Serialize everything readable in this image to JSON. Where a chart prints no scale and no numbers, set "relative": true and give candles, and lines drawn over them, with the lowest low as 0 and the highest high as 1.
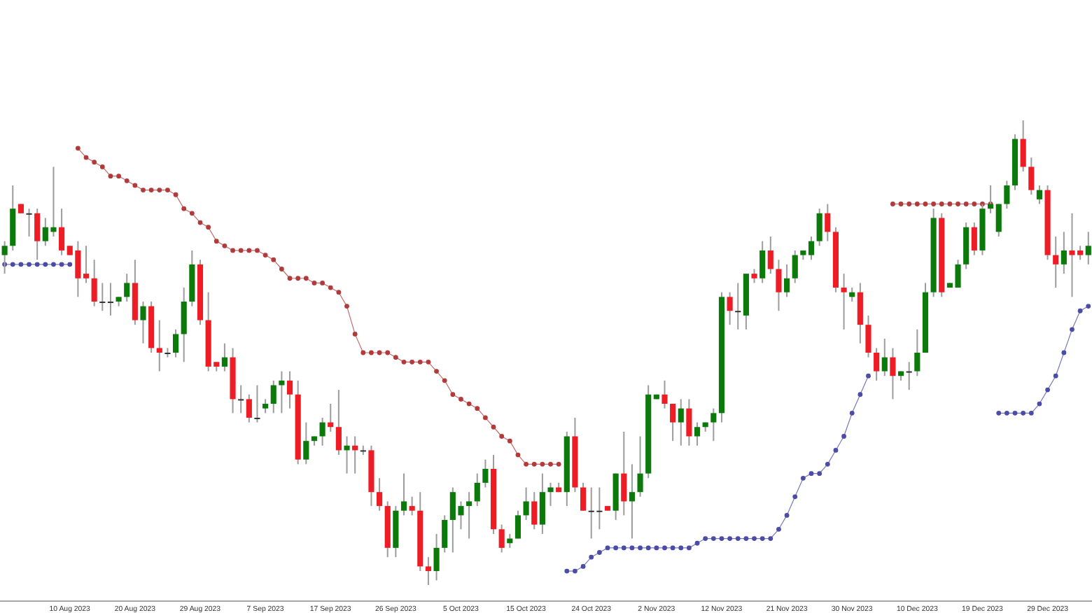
{
  "chart_data": {
    "type": "candlestick",
    "relative": true,
    "marker": "circle",
    "categories": [
      null,
      null,
      null,
      null,
      null,
      null,
      null,
      null,
      "10 Aug 2023",
      null,
      null,
      null,
      null,
      null,
      null,
      null,
      "20 Aug 2023",
      null,
      null,
      null,
      null,
      null,
      null,
      null,
      "29 Aug 2023",
      null,
      null,
      null,
      null,
      null,
      null,
      null,
      "7 Sep 2023",
      null,
      null,
      null,
      null,
      null,
      null,
      null,
      "17 Sep 2023",
      null,
      null,
      null,
      null,
      null,
      null,
      null,
      "26 Sep 2023",
      null,
      null,
      null,
      null,
      null,
      null,
      null,
      "5 Oct 2023",
      null,
      null,
      null,
      null,
      null,
      null,
      null,
      "15 Oct 2023",
      null,
      null,
      null,
      null,
      null,
      null,
      null,
      "24 Oct 2023",
      null,
      null,
      null,
      null,
      null,
      null,
      null,
      "2 Nov 2023",
      null,
      null,
      null,
      null,
      null,
      null,
      null,
      "12 Nov 2023",
      null,
      null,
      null,
      null,
      null,
      null,
      null,
      "21 Nov 2023",
      null,
      null,
      null,
      null,
      null,
      null,
      null,
      "30 Nov 2023",
      null,
      null,
      null,
      null,
      null,
      null,
      null,
      "10 Dec 2023",
      null,
      null,
      null,
      null,
      null,
      null,
      null,
      "19 Dec 2023",
      null,
      null,
      null,
      null,
      null,
      null,
      null,
      "29 Dec 2023",
      null,
      null,
      null,
      null,
      null
    ],
    "ohlc": [
      [
        0.71,
        0.74,
        0.67,
        0.73
      ],
      [
        0.73,
        0.86,
        0.72,
        0.81
      ],
      [
        0.82,
        0.82,
        0.8,
        0.8
      ],
      [
        0.8,
        0.81,
        0.75,
        0.8
      ],
      [
        0.8,
        0.81,
        0.7,
        0.74
      ],
      [
        0.74,
        0.79,
        0.73,
        0.77
      ],
      [
        0.76,
        0.9,
        0.75,
        0.77
      ],
      [
        0.77,
        0.81,
        0.71,
        0.72
      ],
      [
        0.73,
        0.73,
        0.71,
        0.71
      ],
      [
        0.72,
        0.74,
        0.62,
        0.66
      ],
      [
        0.67,
        0.73,
        0.65,
        0.66
      ],
      [
        0.66,
        0.7,
        0.6,
        0.61
      ],
      [
        0.61,
        0.65,
        0.59,
        0.61
      ],
      [
        0.61,
        0.65,
        0.58,
        0.61
      ],
      [
        0.61,
        0.62,
        0.6,
        0.62
      ],
      [
        0.62,
        0.67,
        0.61,
        0.65
      ],
      [
        0.65,
        0.7,
        0.56,
        0.57
      ],
      [
        0.57,
        0.61,
        0.52,
        0.6
      ],
      [
        0.6,
        0.61,
        0.5,
        0.51
      ],
      [
        0.51,
        0.57,
        0.46,
        0.5
      ],
      [
        0.5,
        0.51,
        0.49,
        0.5
      ],
      [
        0.5,
        0.55,
        0.49,
        0.54
      ],
      [
        0.54,
        0.64,
        0.48,
        0.61
      ],
      [
        0.61,
        0.72,
        0.6,
        0.69
      ],
      [
        0.69,
        0.7,
        0.56,
        0.57
      ],
      [
        0.57,
        0.63,
        0.46,
        0.47
      ],
      [
        0.48,
        0.48,
        0.46,
        0.47
      ],
      [
        0.47,
        0.52,
        0.46,
        0.49
      ],
      [
        0.49,
        0.51,
        0.37,
        0.4
      ],
      [
        0.4,
        0.43,
        0.37,
        0.4
      ],
      [
        0.4,
        0.41,
        0.35,
        0.36
      ],
      [
        0.36,
        0.43,
        0.35,
        0.36
      ],
      [
        0.38,
        0.4,
        0.37,
        0.39
      ],
      [
        0.39,
        0.44,
        0.37,
        0.43
      ],
      [
        0.43,
        0.46,
        0.37,
        0.44
      ],
      [
        0.44,
        0.46,
        0.38,
        0.41
      ],
      [
        0.41,
        0.44,
        0.26,
        0.27
      ],
      [
        0.27,
        0.35,
        0.26,
        0.31
      ],
      [
        0.31,
        0.32,
        0.3,
        0.32
      ],
      [
        0.32,
        0.36,
        0.3,
        0.35
      ],
      [
        0.35,
        0.39,
        0.33,
        0.34
      ],
      [
        0.34,
        0.42,
        0.28,
        0.29
      ],
      [
        0.29,
        0.32,
        0.24,
        0.3
      ],
      [
        0.3,
        0.32,
        0.24,
        0.29
      ],
      [
        0.29,
        0.3,
        0.28,
        0.29
      ],
      [
        0.29,
        0.3,
        0.17,
        0.2
      ],
      [
        0.2,
        0.23,
        0.16,
        0.17
      ],
      [
        0.17,
        0.18,
        0.06,
        0.08
      ],
      [
        0.08,
        0.17,
        0.06,
        0.16
      ],
      [
        0.16,
        0.24,
        0.15,
        0.18
      ],
      [
        0.17,
        0.19,
        0.15,
        0.16
      ],
      [
        0.16,
        0.2,
        0.03,
        0.04
      ],
      [
        0.04,
        0.06,
        0,
        0.03
      ],
      [
        0.03,
        0.11,
        0.01,
        0.08
      ],
      [
        0.08,
        0.15,
        0.07,
        0.14
      ],
      [
        0.14,
        0.21,
        0.07,
        0.2
      ],
      [
        0.15,
        0.18,
        0.12,
        0.17
      ],
      [
        0.17,
        0.2,
        0.1,
        0.18
      ],
      [
        0.18,
        0.24,
        0.17,
        0.22
      ],
      [
        0.22,
        0.27,
        0.21,
        0.25
      ],
      [
        0.25,
        0.28,
        0.11,
        0.12
      ],
      [
        0.12,
        0.13,
        0.07,
        0.08
      ],
      [
        0.09,
        0.11,
        0.08,
        0.1
      ],
      [
        0.1,
        0.16,
        0.1,
        0.15
      ],
      [
        0.15,
        0.21,
        0.14,
        0.18
      ],
      [
        0.18,
        0.2,
        0.12,
        0.13
      ],
      [
        0.13,
        0.24,
        0.11,
        0.2
      ],
      [
        0.2,
        0.22,
        0.17,
        0.21
      ],
      [
        0.21,
        0.22,
        0.2,
        0.2
      ],
      [
        0.2,
        0.33,
        0.17,
        0.32
      ],
      [
        0.32,
        0.36,
        0.2,
        0.21
      ],
      [
        0.21,
        0.22,
        0.16,
        0.16
      ],
      [
        0.16,
        0.21,
        0.1,
        0.16
      ],
      [
        0.16,
        0.21,
        0.12,
        0.16
      ],
      [
        0.17,
        0.17,
        0.16,
        0.16
      ],
      [
        0.16,
        0.24,
        0.14,
        0.24
      ],
      [
        0.24,
        0.33,
        0.15,
        0.18
      ],
      [
        0.18,
        0.26,
        0.1,
        0.2
      ],
      [
        0.2,
        0.32,
        0.19,
        0.24
      ],
      [
        0.24,
        0.43,
        0.23,
        0.41
      ],
      [
        0.4,
        0.41,
        0.4,
        0.41
      ],
      [
        0.41,
        0.44,
        0.38,
        0.39
      ],
      [
        0.39,
        0.39,
        0.31,
        0.35
      ],
      [
        0.35,
        0.4,
        0.3,
        0.38
      ],
      [
        0.38,
        0.4,
        0.3,
        0.32
      ],
      [
        0.32,
        0.35,
        0.3,
        0.34
      ],
      [
        0.34,
        0.35,
        0.33,
        0.35
      ],
      [
        0.35,
        0.38,
        0.31,
        0.37
      ],
      [
        0.37,
        0.63,
        0.35,
        0.62
      ],
      [
        0.62,
        0.63,
        0.56,
        0.59
      ],
      [
        0.59,
        0.65,
        0.55,
        0.59
      ],
      [
        0.58,
        0.67,
        0.55,
        0.67
      ],
      [
        0.67,
        0.68,
        0.65,
        0.66
      ],
      [
        0.66,
        0.74,
        0.65,
        0.72
      ],
      [
        0.72,
        0.75,
        0.67,
        0.68
      ],
      [
        0.68,
        0.7,
        0.59,
        0.63
      ],
      [
        0.63,
        0.69,
        0.62,
        0.66
      ],
      [
        0.66,
        0.72,
        0.65,
        0.71
      ],
      [
        0.71,
        0.72,
        0.7,
        0.72
      ],
      [
        0.71,
        0.75,
        0.7,
        0.74
      ],
      [
        0.74,
        0.81,
        0.73,
        0.8
      ],
      [
        0.8,
        0.82,
        0.74,
        0.76
      ],
      [
        0.76,
        0.77,
        0.63,
        0.64
      ],
      [
        0.64,
        0.67,
        0.55,
        0.63
      ],
      [
        0.62,
        0.64,
        0.61,
        0.63
      ],
      [
        0.63,
        0.65,
        0.52,
        0.56
      ],
      [
        0.56,
        0.58,
        0.49,
        0.5
      ],
      [
        0.5,
        0.51,
        0.44,
        0.46
      ],
      [
        0.46,
        0.53,
        0.45,
        0.49
      ],
      [
        0.49,
        0.51,
        0.4,
        0.45
      ],
      [
        0.45,
        0.46,
        0.44,
        0.46
      ],
      [
        0.46,
        0.48,
        0.42,
        0.46
      ],
      [
        0.46,
        0.55,
        0.45,
        0.5
      ],
      [
        0.5,
        0.65,
        0.5,
        0.63
      ],
      [
        0.63,
        0.81,
        0.62,
        0.79
      ],
      [
        0.79,
        0.8,
        0.62,
        0.63
      ],
      [
        0.64,
        0.65,
        0.64,
        0.65
      ],
      [
        0.64,
        0.7,
        0.64,
        0.69
      ],
      [
        0.69,
        0.78,
        0.68,
        0.77
      ],
      [
        0.77,
        0.78,
        0.71,
        0.72
      ],
      [
        0.72,
        0.82,
        0.71,
        0.81
      ],
      [
        0.81,
        0.86,
        0.8,
        0.82
      ],
      [
        0.76,
        0.82,
        0.75,
        0.82
      ],
      [
        0.82,
        0.87,
        0.81,
        0.86
      ],
      [
        0.86,
        0.97,
        0.85,
        0.96
      ],
      [
        0.96,
        1,
        0.89,
        0.9
      ],
      [
        0.9,
        0.92,
        0.84,
        0.85
      ],
      [
        0.83,
        0.86,
        0.82,
        0.85
      ],
      [
        0.85,
        0.86,
        0.7,
        0.71
      ],
      [
        0.71,
        0.75,
        0.64,
        0.69
      ],
      [
        0.69,
        0.76,
        0.67,
        0.72
      ],
      [
        0.72,
        0.8,
        0.62,
        0.71
      ],
      [
        0.72,
        0.73,
        0.7,
        0.71
      ],
      [
        0.71,
        0.76,
        0.69,
        0.73
      ]
    ],
    "colors": [
      "#0b7a0b",
      "#0b7a0b",
      "#ee1c25",
      "#333333",
      "#ee1c25",
      "#0b7a0b",
      "#0b7a0b",
      "#ee1c25",
      "#ee1c25",
      "#ee1c25",
      "#ee1c25",
      "#ee1c25",
      "#333333",
      "#333333",
      "#0b7a0b",
      "#0b7a0b",
      "#ee1c25",
      "#0b7a0b",
      "#ee1c25",
      "#ee1c25",
      "#333333",
      "#0b7a0b",
      "#0b7a0b",
      "#0b7a0b",
      "#ee1c25",
      "#ee1c25",
      "#ee1c25",
      "#0b7a0b",
      "#ee1c25",
      "#333333",
      "#ee1c25",
      "#333333",
      "#0b7a0b",
      "#0b7a0b",
      "#0b7a0b",
      "#ee1c25",
      "#ee1c25",
      "#0b7a0b",
      "#0b7a0b",
      "#0b7a0b",
      "#ee1c25",
      "#ee1c25",
      "#0b7a0b",
      "#ee1c25",
      "#333333",
      "#ee1c25",
      "#ee1c25",
      "#ee1c25",
      "#0b7a0b",
      "#0b7a0b",
      "#ee1c25",
      "#ee1c25",
      "#ee1c25",
      "#0b7a0b",
      "#0b7a0b",
      "#0b7a0b",
      "#0b7a0b",
      "#0b7a0b",
      "#0b7a0b",
      "#0b7a0b",
      "#ee1c25",
      "#ee1c25",
      "#0b7a0b",
      "#0b7a0b",
      "#0b7a0b",
      "#ee1c25",
      "#0b7a0b",
      "#0b7a0b",
      "#ee1c25",
      "#0b7a0b",
      "#ee1c25",
      "#ee1c25",
      "#333333",
      "#333333",
      "#ee1c25",
      "#0b7a0b",
      "#ee1c25",
      "#0b7a0b",
      "#0b7a0b",
      "#0b7a0b",
      "#0b7a0b",
      "#ee1c25",
      "#ee1c25",
      "#0b7a0b",
      "#ee1c25",
      "#0b7a0b",
      "#0b7a0b",
      "#0b7a0b",
      "#0b7a0b",
      "#ee1c25",
      "#333333",
      "#0b7a0b",
      "#ee1c25",
      "#0b7a0b",
      "#ee1c25",
      "#ee1c25",
      "#0b7a0b",
      "#0b7a0b",
      "#0b7a0b",
      "#0b7a0b",
      "#0b7a0b",
      "#ee1c25",
      "#ee1c25",
      "#ee1c25",
      "#0b7a0b",
      "#ee1c25",
      "#ee1c25",
      "#ee1c25",
      "#0b7a0b",
      "#ee1c25",
      "#0b7a0b",
      "#333333",
      "#0b7a0b",
      "#0b7a0b",
      "#0b7a0b",
      "#ee1c25",
      "#0b7a0b",
      "#0b7a0b",
      "#0b7a0b",
      "#ee1c25",
      "#0b7a0b",
      "#0b7a0b",
      "#0b7a0b",
      "#0b7a0b",
      "#0b7a0b",
      "#ee1c25",
      "#ee1c25",
      "#0b7a0b",
      "#ee1c25",
      "#ee1c25",
      "#0b7a0b",
      "#ee1c25",
      "#ee1c25",
      "#0b7a0b"
    ],
    "series": [
      {
        "type": "line",
        "color": "#b33a3a",
        "values": [
          null,
          null,
          null,
          null,
          null,
          null,
          null,
          null,
          null,
          0.94,
          0.92,
          0.91,
          0.9,
          0.88,
          0.88,
          0.87,
          0.86,
          0.85,
          0.85,
          0.85,
          0.85,
          0.84,
          0.81,
          0.8,
          0.78,
          0.77,
          0.74,
          0.73,
          0.72,
          0.72,
          0.72,
          0.72,
          0.71,
          0.7,
          0.68,
          0.66,
          0.66,
          0.66,
          0.65,
          0.65,
          0.64,
          0.63,
          0.6,
          0.54,
          0.5,
          0.5,
          0.5,
          0.5,
          0.49,
          0.48,
          0.48,
          0.48,
          0.48,
          0.46,
          0.44,
          0.41,
          0.4,
          0.39,
          0.38,
          0.36,
          0.34,
          0.32,
          0.31,
          0.28,
          0.26,
          0.26,
          0.26,
          0.26,
          0.26,
          null,
          null,
          null,
          null,
          null,
          null,
          null,
          null,
          null,
          null,
          null,
          null,
          null,
          null,
          null,
          null,
          null,
          null,
          null,
          null,
          null,
          null,
          null,
          null,
          null,
          null,
          null,
          null,
          null,
          null,
          null,
          null,
          null,
          null,
          null,
          null,
          null,
          null,
          null,
          null,
          0.82,
          0.82,
          0.82,
          0.82,
          0.82,
          0.82,
          0.82,
          0.82,
          0.82,
          0.82,
          0.82,
          0.82,
          0.82,
          null,
          null,
          null,
          null,
          null,
          null,
          null,
          null,
          null,
          null,
          null,
          null
        ]
      },
      {
        "type": "line",
        "color": "#4b4ba8",
        "values": [
          0.69,
          0.69,
          0.69,
          0.69,
          0.69,
          0.69,
          0.69,
          0.69,
          0.69,
          null,
          null,
          null,
          null,
          null,
          null,
          null,
          null,
          null,
          null,
          null,
          null,
          null,
          null,
          null,
          null,
          null,
          null,
          null,
          null,
          null,
          null,
          null,
          null,
          null,
          null,
          null,
          null,
          null,
          null,
          null,
          null,
          null,
          null,
          null,
          null,
          null,
          null,
          null,
          null,
          null,
          null,
          null,
          null,
          null,
          null,
          null,
          null,
          null,
          null,
          null,
          null,
          null,
          null,
          null,
          null,
          null,
          null,
          null,
          null,
          0.03,
          0.03,
          0.04,
          0.06,
          0.07,
          0.08,
          0.08,
          0.08,
          0.08,
          0.08,
          0.08,
          0.08,
          0.08,
          0.08,
          0.08,
          0.08,
          0.09,
          0.1,
          0.1,
          0.1,
          0.1,
          0.1,
          0.1,
          0.1,
          0.1,
          0.1,
          0.12,
          0.15,
          0.19,
          0.23,
          0.24,
          0.24,
          0.26,
          0.29,
          0.32,
          0.37,
          0.41,
          0.45,
          null,
          null,
          null,
          null,
          null,
          null,
          null,
          null,
          null,
          null,
          null,
          null,
          null,
          null,
          null,
          0.37,
          0.37,
          0.37,
          0.37,
          0.37,
          0.39,
          0.42,
          0.45,
          0.5,
          0.55,
          0.59,
          0.6
        ]
      }
    ]
  }
}
